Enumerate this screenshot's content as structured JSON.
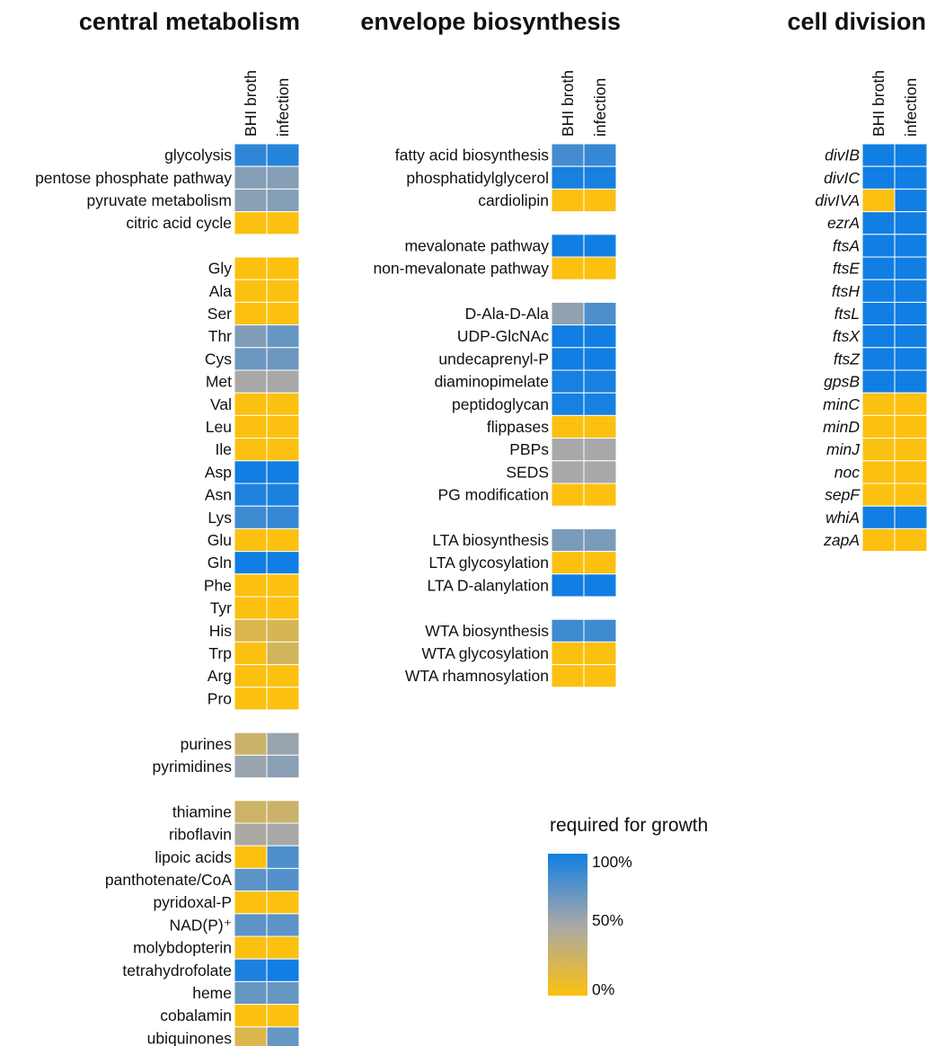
{
  "chart_data": {
    "type": "heatmap",
    "color_scale": {
      "title": "required for growth",
      "ticks": [
        "100%",
        "50%",
        "0%"
      ],
      "stops": [
        {
          "value": 0,
          "color": "#fcc010"
        },
        {
          "value": 0.5,
          "color": "#a8a8a8"
        },
        {
          "value": 1,
          "color": "#117ee3"
        }
      ]
    },
    "panels": [
      {
        "title": "central metabolism",
        "columns": [
          "BHI broth",
          "infection"
        ],
        "groups": [
          {
            "rows": [
              {
                "label": "glycolysis",
                "values": [
                  0.9,
                  0.93
                ]
              },
              {
                "label": "pentose phosphate pathway",
                "values": [
                  0.62,
                  0.62
                ]
              },
              {
                "label": "pyruvate metabolism",
                "values": [
                  0.6,
                  0.62
                ]
              },
              {
                "label": "citric acid cycle",
                "values": [
                  0,
                  0
                ]
              }
            ]
          },
          {
            "rows": [
              {
                "label": "Gly",
                "values": [
                  0,
                  0
                ]
              },
              {
                "label": "Ala",
                "values": [
                  0,
                  0
                ]
              },
              {
                "label": "Ser",
                "values": [
                  0,
                  0
                ]
              },
              {
                "label": "Thr",
                "values": [
                  0.63,
                  0.72
                ]
              },
              {
                "label": "Cys",
                "values": [
                  0.7,
                  0.7
                ]
              },
              {
                "label": "Met",
                "values": [
                  0.5,
                  0.5
                ]
              },
              {
                "label": "Val",
                "values": [
                  0,
                  0
                ]
              },
              {
                "label": "Leu",
                "values": [
                  0,
                  0
                ]
              },
              {
                "label": "Ile",
                "values": [
                  0,
                  0
                ]
              },
              {
                "label": "Asp",
                "values": [
                  1,
                  1
                ]
              },
              {
                "label": "Asn",
                "values": [
                  0.95,
                  0.97
                ]
              },
              {
                "label": "Lys",
                "values": [
                  0.85,
                  0.88
                ]
              },
              {
                "label": "Glu",
                "values": [
                  0,
                  0
                ]
              },
              {
                "label": "Gln",
                "values": [
                  1,
                  1
                ]
              },
              {
                "label": "Phe",
                "values": [
                  0,
                  0
                ]
              },
              {
                "label": "Tyr",
                "values": [
                  0,
                  0
                ]
              },
              {
                "label": "His",
                "values": [
                  0.2,
                  0.22
                ]
              },
              {
                "label": "Trp",
                "values": [
                  0,
                  0.25
                ]
              },
              {
                "label": "Arg",
                "values": [
                  0,
                  0
                ]
              },
              {
                "label": "Pro",
                "values": [
                  0,
                  0
                ]
              }
            ]
          },
          {
            "rows": [
              {
                "label": "purines",
                "values": [
                  0.3,
                  0.55
                ]
              },
              {
                "label": "pyrimidines",
                "values": [
                  0.55,
                  0.6
                ]
              }
            ]
          },
          {
            "rows": [
              {
                "label": "thiamine",
                "values": [
                  0.28,
                  0.3
                ]
              },
              {
                "label": "riboflavin",
                "values": [
                  0.48,
                  0.5
                ]
              },
              {
                "label": "lipoic acids",
                "values": [
                  0,
                  0.8
                ]
              },
              {
                "label": "panthotenate/CoA",
                "values": [
                  0.75,
                  0.78
                ]
              },
              {
                "label": "pyridoxal-P",
                "values": [
                  0,
                  0
                ]
              },
              {
                "label": "NAD(P)⁺",
                "values": [
                  0.75,
                  0.75
                ]
              },
              {
                "label": "molybdopterin",
                "values": [
                  0,
                  0
                ]
              },
              {
                "label": "tetrahydrofolate",
                "values": [
                  0.97,
                  1
                ]
              },
              {
                "label": "heme",
                "values": [
                  0.72,
                  0.72
                ]
              },
              {
                "label": "cobalamin",
                "values": [
                  0,
                  0
                ]
              },
              {
                "label": "ubiquinones",
                "values": [
                  0.2,
                  0.72
                ]
              }
            ]
          }
        ]
      },
      {
        "title": "envelope biosynthesis",
        "columns": [
          "BHI broth",
          "infection"
        ],
        "groups": [
          {
            "rows": [
              {
                "label": "fatty acid biosynthesis",
                "values": [
                  0.83,
                  0.88
                ]
              },
              {
                "label": "phosphatidylglycerol",
                "values": [
                  0.98,
                  0.98
                ]
              },
              {
                "label": "cardiolipin",
                "values": [
                  0,
                  0
                ]
              }
            ]
          },
          {
            "rows": [
              {
                "label": "mevalonate pathway",
                "values": [
                  1,
                  1
                ]
              },
              {
                "label": "non-mevalonate pathway",
                "values": [
                  0,
                  0
                ]
              }
            ]
          },
          {
            "rows": [
              {
                "label": "D-Ala-D-Ala",
                "values": [
                  0.58,
                  0.8
                ]
              },
              {
                "label": "UDP-GlcNAc",
                "values": [
                  1,
                  1
                ]
              },
              {
                "label": "undecaprenyl-P",
                "values": [
                  1,
                  1
                ]
              },
              {
                "label": "diaminopimelate",
                "values": [
                  0.98,
                  0.98
                ]
              },
              {
                "label": "peptidoglycan",
                "values": [
                  0.98,
                  0.98
                ]
              },
              {
                "label": "flippases",
                "values": [
                  0,
                  0
                ]
              },
              {
                "label": "PBPs",
                "values": [
                  0.5,
                  0.5
                ]
              },
              {
                "label": "SEDS",
                "values": [
                  0.5,
                  0.5
                ]
              },
              {
                "label": "PG modification",
                "values": [
                  0,
                  0
                ]
              }
            ]
          },
          {
            "rows": [
              {
                "label": "LTA biosynthesis",
                "values": [
                  0.65,
                  0.65
                ]
              },
              {
                "label": "LTA glycosylation",
                "values": [
                  0,
                  0
                ]
              },
              {
                "label": "LTA D-alanylation",
                "values": [
                  1,
                  1
                ]
              }
            ]
          },
          {
            "rows": [
              {
                "label": "WTA biosynthesis",
                "values": [
                  0.85,
                  0.85
                ]
              },
              {
                "label": "WTA glycosylation",
                "values": [
                  0,
                  0
                ]
              },
              {
                "label": "WTA rhamnosylation",
                "values": [
                  0,
                  0
                ]
              }
            ]
          }
        ]
      },
      {
        "title": "cell division",
        "columns": [
          "BHI broth",
          "infection"
        ],
        "italic_labels": true,
        "groups": [
          {
            "rows": [
              {
                "label": "divIB",
                "values": [
                  1,
                  1
                ]
              },
              {
                "label": "divIC",
                "values": [
                  1,
                  1
                ]
              },
              {
                "label": "divIVA",
                "values": [
                  0,
                  1
                ]
              },
              {
                "label": "ezrA",
                "values": [
                  1,
                  1
                ]
              },
              {
                "label": "ftsA",
                "values": [
                  1,
                  1
                ]
              },
              {
                "label": "ftsE",
                "values": [
                  1,
                  1
                ]
              },
              {
                "label": "ftsH",
                "values": [
                  1,
                  1
                ]
              },
              {
                "label": "ftsL",
                "values": [
                  1,
                  1
                ]
              },
              {
                "label": "ftsX",
                "values": [
                  1,
                  1
                ]
              },
              {
                "label": "ftsZ",
                "values": [
                  1,
                  1
                ]
              },
              {
                "label": "gpsB",
                "values": [
                  1,
                  1
                ]
              },
              {
                "label": "minC",
                "values": [
                  0,
                  0
                ]
              },
              {
                "label": "minD",
                "values": [
                  0,
                  0
                ]
              },
              {
                "label": "minJ",
                "values": [
                  0,
                  0
                ]
              },
              {
                "label": "noc",
                "values": [
                  0,
                  0
                ]
              },
              {
                "label": "sepF",
                "values": [
                  0,
                  0
                ]
              },
              {
                "label": "whiA",
                "values": [
                  1,
                  1
                ]
              },
              {
                "label": "zapA",
                "values": [
                  0,
                  0
                ]
              }
            ]
          }
        ]
      }
    ]
  }
}
